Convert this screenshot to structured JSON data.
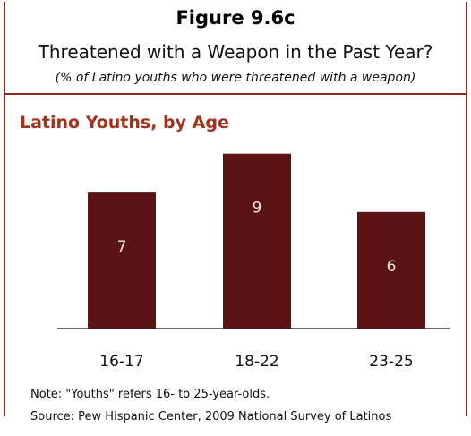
{
  "header": {
    "figure_number": "Figure 9.6c",
    "title": "Threatened with a Weapon in the Past Year?",
    "subtitle": "(% of Latino youths who were threatened with a weapon)"
  },
  "section_title": "Latino Youths, by Age",
  "footer": {
    "note": "Note: \"Youths\" refers 16- to 25-year-olds.",
    "source": "Source: Pew Hispanic Center, 2009 National Survey of Latinos"
  },
  "colors": {
    "bar": "#5a1414",
    "accent": "#a3321e",
    "bar_label": "#f2e6e0",
    "axis": "#333333"
  },
  "chart_data": {
    "type": "bar",
    "categories": [
      "16-17",
      "18-22",
      "23-25"
    ],
    "values": [
      7,
      9,
      6
    ],
    "data_labels": [
      "7",
      "9",
      "6"
    ],
    "ylim": [
      0,
      10
    ],
    "grid": false,
    "legend": "none"
  }
}
